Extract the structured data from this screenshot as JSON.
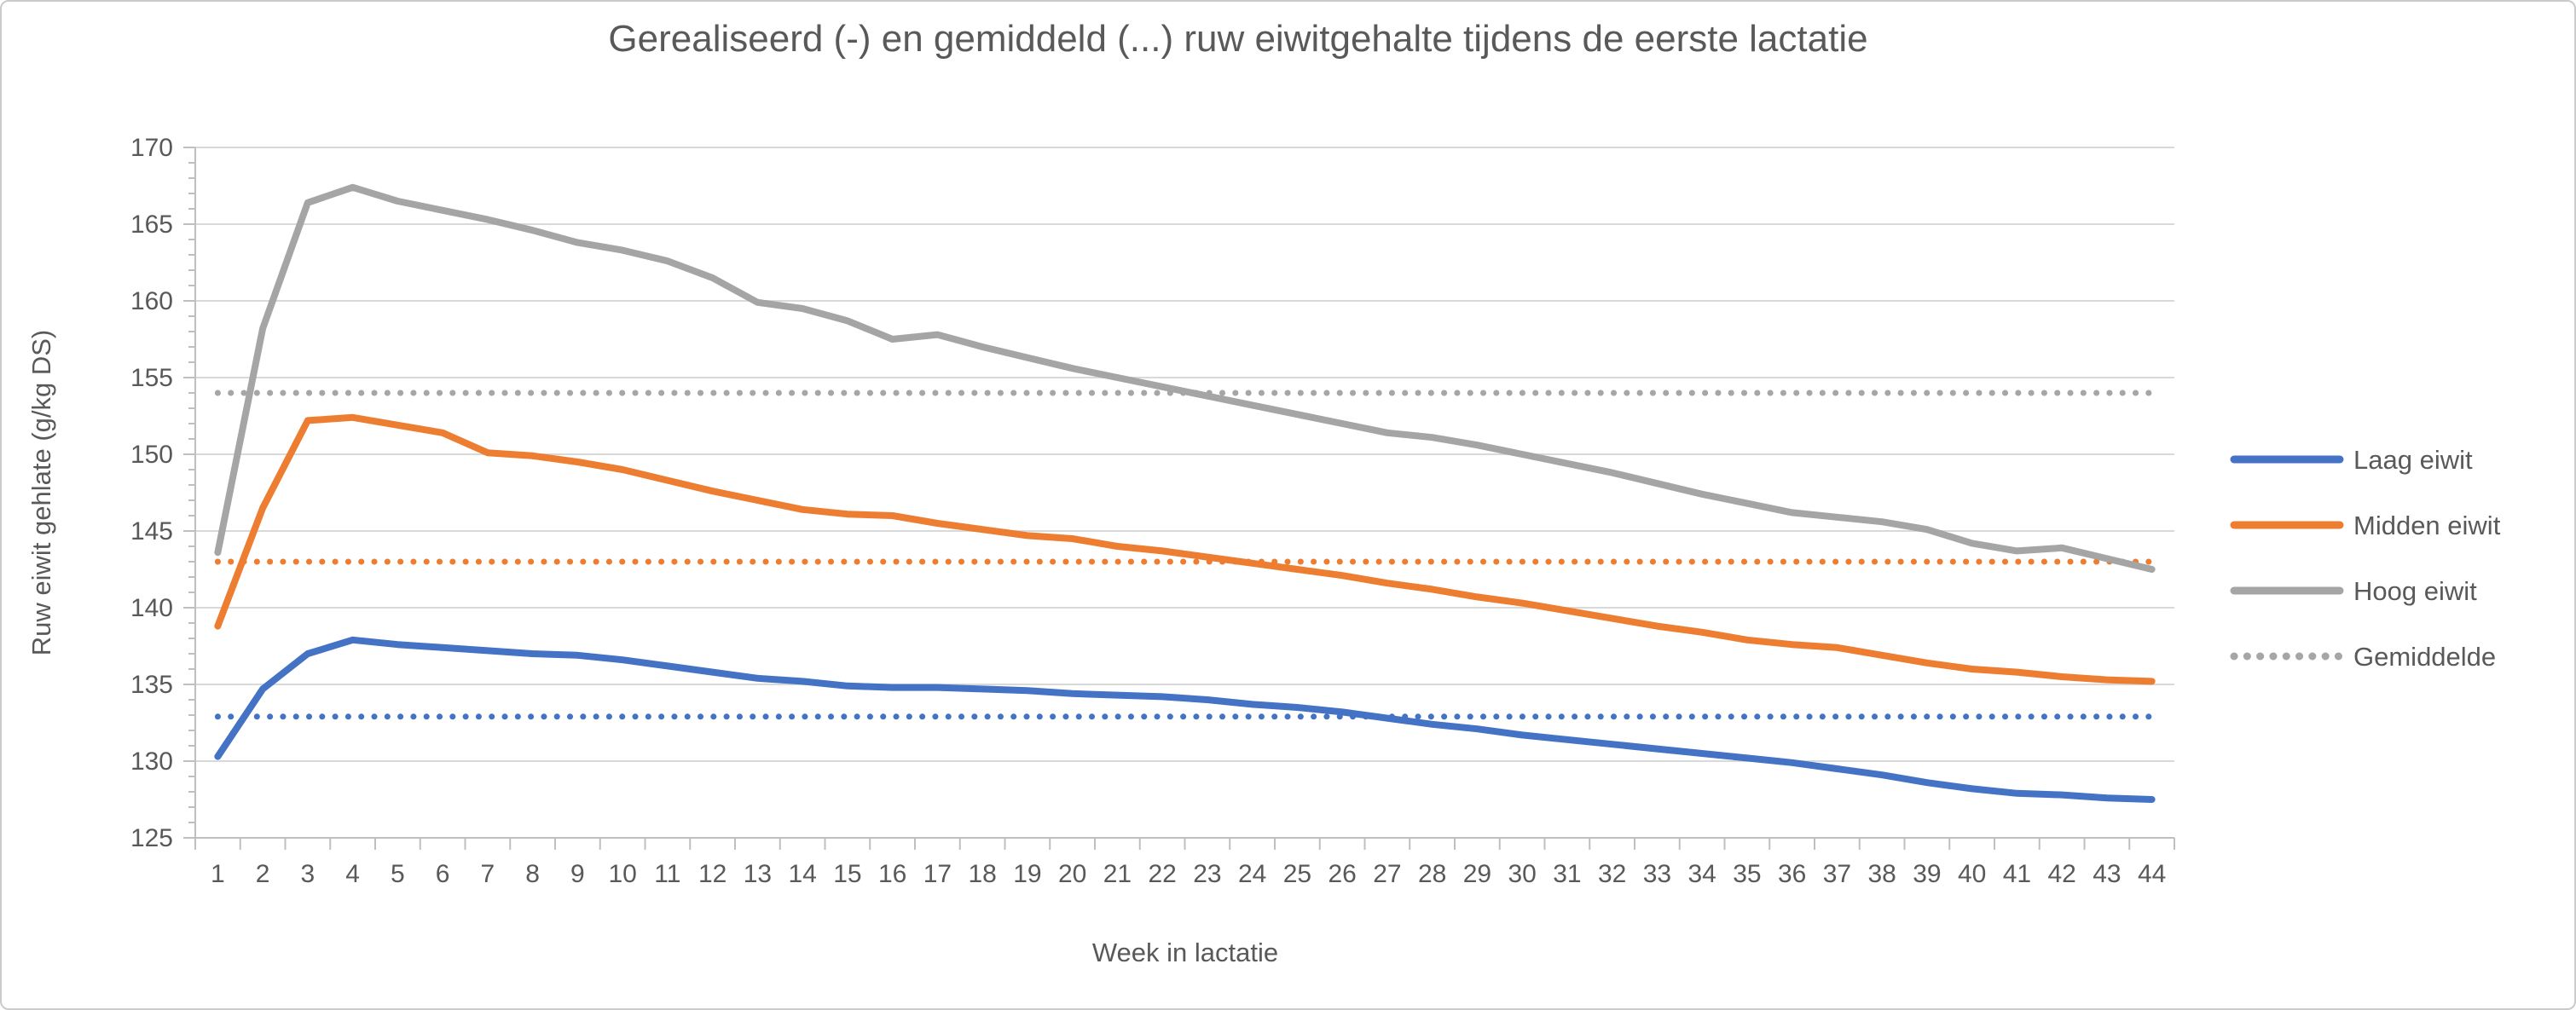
{
  "chart": {
    "title": "Gerealiseerd (-) en gemiddeld (...) ruw eiwitgehalte tijdens de eerste lactatie",
    "xlabel": "Week in lactatie",
    "ylabel": "Ruw eiwit gehlate (g/kg DS)"
  },
  "chart_data": {
    "type": "line",
    "title": "Gerealiseerd (-) en gemiddeld (...) ruw eiwitgehalte tijdens de eerste lactatie",
    "xlabel": "Week in lactatie",
    "ylabel": "Ruw eiwit gehlate (g/kg DS)",
    "x": [
      1,
      2,
      3,
      4,
      5,
      6,
      7,
      8,
      9,
      10,
      11,
      12,
      13,
      14,
      15,
      16,
      17,
      18,
      19,
      20,
      21,
      22,
      23,
      24,
      25,
      26,
      27,
      28,
      29,
      30,
      31,
      32,
      33,
      34,
      35,
      36,
      37,
      38,
      39,
      40,
      41,
      42,
      43,
      44
    ],
    "xticks": [
      1,
      2,
      3,
      4,
      5,
      6,
      7,
      8,
      9,
      10,
      11,
      12,
      13,
      14,
      15,
      16,
      17,
      18,
      19,
      20,
      21,
      22,
      23,
      24,
      25,
      26,
      27,
      28,
      29,
      30,
      31,
      32,
      33,
      34,
      35,
      36,
      37,
      38,
      39,
      40,
      41,
      42,
      43,
      44
    ],
    "yticks": [
      125,
      130,
      135,
      140,
      145,
      150,
      155,
      160,
      165,
      170
    ],
    "ylim": [
      125,
      170
    ],
    "grid": true,
    "legend_position": "right",
    "series": [
      {
        "name": "Laag eiwit",
        "color": "#4472C4",
        "style": "solid",
        "values": [
          130.3,
          134.7,
          137.0,
          137.9,
          137.6,
          137.4,
          137.2,
          137.0,
          136.9,
          136.6,
          136.2,
          135.8,
          135.4,
          135.2,
          134.9,
          134.8,
          134.8,
          134.7,
          134.6,
          134.4,
          134.3,
          134.2,
          134.0,
          133.7,
          133.5,
          133.2,
          132.8,
          132.4,
          132.1,
          131.7,
          131.4,
          131.1,
          130.8,
          130.5,
          130.2,
          129.9,
          129.5,
          129.1,
          128.6,
          128.2,
          127.9,
          127.8,
          127.6,
          127.5
        ]
      },
      {
        "name": "Midden eiwit",
        "color": "#ED7D31",
        "style": "solid",
        "values": [
          138.8,
          146.5,
          152.2,
          152.4,
          151.9,
          151.4,
          150.1,
          149.9,
          149.5,
          149.0,
          148.3,
          147.6,
          147.0,
          146.4,
          146.1,
          146.0,
          145.5,
          145.1,
          144.7,
          144.5,
          144.0,
          143.7,
          143.3,
          142.9,
          142.5,
          142.1,
          141.6,
          141.2,
          140.7,
          140.3,
          139.8,
          139.3,
          138.8,
          138.4,
          137.9,
          137.6,
          137.4,
          136.9,
          136.4,
          136.0,
          135.8,
          135.5,
          135.3,
          135.2
        ]
      },
      {
        "name": "Hoog eiwit",
        "color": "#A5A5A5",
        "style": "solid",
        "values": [
          143.6,
          158.2,
          166.4,
          167.4,
          166.5,
          165.9,
          165.3,
          164.6,
          163.8,
          163.3,
          162.6,
          161.5,
          159.9,
          159.5,
          158.7,
          157.5,
          157.8,
          157.0,
          156.3,
          155.6,
          155.0,
          154.4,
          153.8,
          153.2,
          152.6,
          152.0,
          151.4,
          151.1,
          150.6,
          150.0,
          149.4,
          148.8,
          148.1,
          147.4,
          146.8,
          146.2,
          145.9,
          145.6,
          145.1,
          144.2,
          143.7,
          143.9,
          143.2,
          142.5
        ]
      }
    ],
    "average_lines": [
      {
        "series": "Laag eiwit",
        "value": 132.9,
        "color": "#4472C4",
        "style": "dotted"
      },
      {
        "series": "Midden eiwit",
        "value": 143.0,
        "color": "#ED7D31",
        "style": "dotted"
      },
      {
        "series": "Hoog eiwit",
        "value": 154.0,
        "color": "#A6A6A6",
        "style": "dotted"
      }
    ],
    "legend": [
      {
        "label": "Laag eiwit",
        "color": "#4472C4",
        "style": "solid"
      },
      {
        "label": "Midden eiwit",
        "color": "#ED7D31",
        "style": "solid"
      },
      {
        "label": "Hoog eiwit",
        "color": "#A5A5A5",
        "style": "solid"
      },
      {
        "label": "Gemiddelde",
        "color": "#A6A6A6",
        "style": "dotted"
      }
    ],
    "colors": {
      "text": "#595959",
      "gridline": "#D9D9D9",
      "axis_line": "#BFBFBF"
    }
  }
}
